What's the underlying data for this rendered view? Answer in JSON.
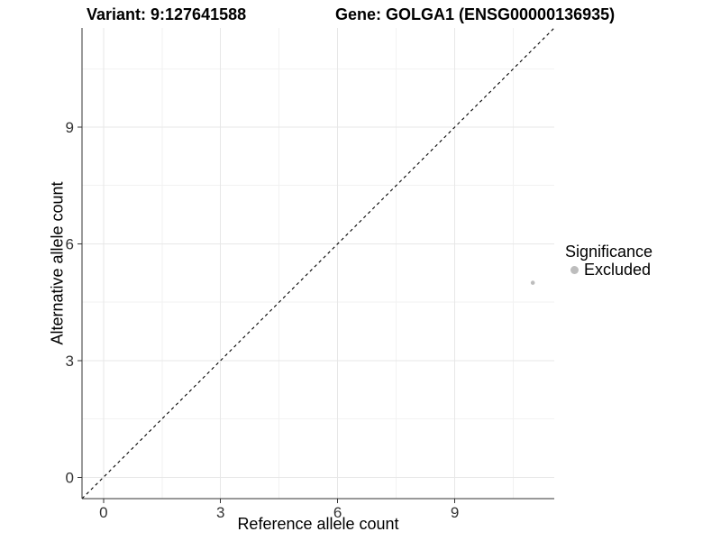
{
  "titles": {
    "variant": "Variant: 9:127641588",
    "gene": "Gene: GOLGA1 (ENSG00000136935)"
  },
  "legend": {
    "title": "Significance",
    "items": [
      {
        "label": "Excluded",
        "marker": "dot-icon",
        "color": "#bdbdbd"
      }
    ]
  },
  "colors": {
    "background": "#ffffff",
    "point": "#bdbdbd",
    "major_grid": "#e7e7e7",
    "minor_grid": "#f2f2f2",
    "axis_line": "#333333",
    "tick_label": "#333333",
    "reference_line": "#000000"
  },
  "chart_data": {
    "type": "scatter",
    "title": "Variant: 9:127641588    Gene: GOLGA1 (ENSG00000136935)",
    "xlabel": "Reference allele count",
    "ylabel": "Alternative allele count",
    "xlim": [
      -0.55,
      11.55
    ],
    "ylim": [
      -0.55,
      11.55
    ],
    "x_ticks": [
      0,
      3,
      6,
      9
    ],
    "y_ticks": [
      0,
      3,
      6,
      9
    ],
    "x_minor_ticks": [
      1.5,
      4.5,
      7.5,
      10.5
    ],
    "y_minor_ticks": [
      1.5,
      4.5,
      7.5,
      10.5
    ],
    "grid": true,
    "legend_position": "right",
    "series": [
      {
        "name": "Excluded",
        "color": "#bdbdbd",
        "points": [
          {
            "x": 11,
            "y": 5
          }
        ]
      }
    ],
    "reference_line": {
      "type": "abline",
      "slope": 1,
      "intercept": 0,
      "style": "dashed",
      "color": "#000000"
    }
  }
}
